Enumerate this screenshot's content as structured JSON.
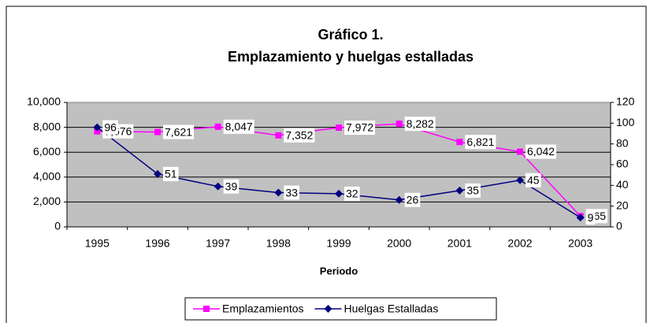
{
  "chart_data": {
    "type": "line",
    "title": "Gráfico 1.",
    "subtitle": "Emplazamiento y huelgas estalladas",
    "x_label": "Periodo",
    "categories": [
      "1995",
      "1996",
      "1997",
      "1998",
      "1999",
      "2000",
      "2001",
      "2002",
      "2003"
    ],
    "series": [
      {
        "name": "Emplazamientos",
        "color": "#ff00ff",
        "marker": "square",
        "values": [
          7676,
          7621,
          8047,
          7352,
          7972,
          8282,
          6821,
          6042,
          865
        ],
        "value_labels": [
          "7,676",
          "7,621",
          "8,047",
          "7,352",
          "7,972",
          "8,282",
          "6,821",
          "6,042",
          "865"
        ]
      },
      {
        "name": "Huelgas Estalladas",
        "color": "#000080",
        "marker": "diamond",
        "axis": "y2",
        "values": [
          96,
          51,
          39,
          33,
          32,
          26,
          35,
          45,
          9
        ]
      }
    ],
    "ylim": [
      0,
      10000
    ],
    "yticks": [
      0,
      {
        "value": 2000,
        "label": "2,000"
      },
      {
        "value": 4000,
        "label": "4,000"
      },
      {
        "value": 6000,
        "label": "6,000"
      },
      {
        "value": 8000,
        "label": "8,000"
      },
      {
        "value": 10000,
        "label": "10,000"
      }
    ],
    "y2lim": [
      0,
      120
    ],
    "y2ticks": [
      0,
      20,
      40,
      60,
      80,
      100,
      120
    ],
    "grid": true,
    "legend": "bottom"
  }
}
